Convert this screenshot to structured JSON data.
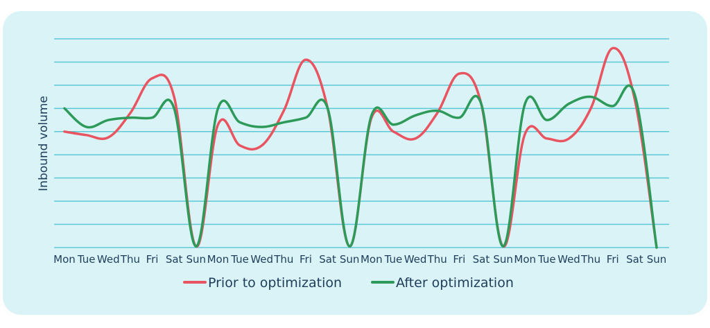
{
  "chart_data": {
    "type": "line",
    "title": "",
    "xlabel": "",
    "ylabel": "Inbound volume",
    "ylim": [
      0,
      9
    ],
    "grid": true,
    "legend_position": "bottom",
    "categories": [
      "Mon",
      "Tue",
      "Wed",
      "Thu",
      "Fri",
      "Sat",
      "Sun",
      "Mon",
      "Tue",
      "Wed",
      "Thu",
      "Fri",
      "Sat",
      "Sun",
      "Mon",
      "Tue",
      "Wed",
      "Thu",
      "Fri",
      "Sat",
      "Sun",
      "Mon",
      "Tue",
      "Wed",
      "Thu",
      "Fri",
      "Sat",
      "Sun"
    ],
    "series": [
      {
        "name": "Prior to optimization",
        "color": "#e8545f",
        "values": [
          5.0,
          4.85,
          4.75,
          5.8,
          7.3,
          6.5,
          0.05,
          5.3,
          4.4,
          4.4,
          5.9,
          8.1,
          6.0,
          0.05,
          5.6,
          5.0,
          4.7,
          5.8,
          7.5,
          6.2,
          0.05,
          4.9,
          4.7,
          4.7,
          6.0,
          8.6,
          6.4,
          0.0
        ]
      },
      {
        "name": "After optimization",
        "color": "#2e9a59",
        "values": [
          6.0,
          5.2,
          5.5,
          5.6,
          5.6,
          6.0,
          0.05,
          6.0,
          5.4,
          5.2,
          5.4,
          5.6,
          6.0,
          0.05,
          5.7,
          5.3,
          5.7,
          5.9,
          5.6,
          6.2,
          0.05,
          6.2,
          5.5,
          6.2,
          6.5,
          6.1,
          6.6,
          0.0
        ]
      }
    ]
  }
}
